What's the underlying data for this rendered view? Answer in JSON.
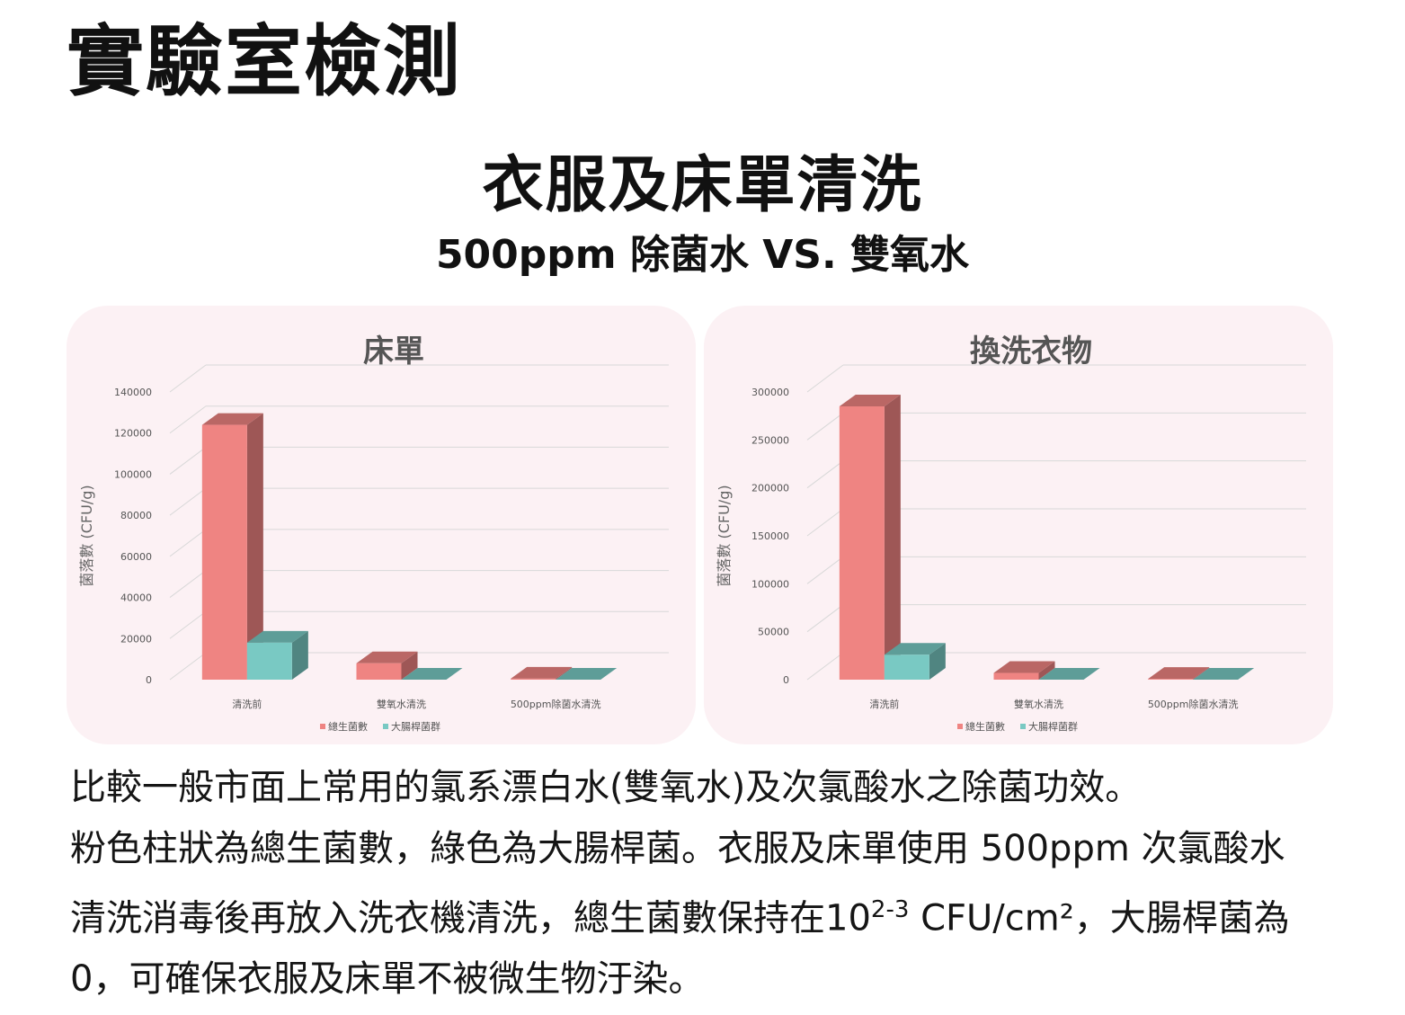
{
  "header": {
    "page_title": "實驗室檢測",
    "main_title": "衣服及床單清洗",
    "subtitle": "500ppm 除菌水 VS. 雙氧水"
  },
  "colors": {
    "total_bacteria": "#ef8482",
    "coliform": "#79c9c3",
    "panel_bg": "#fcf1f4"
  },
  "chart_data": [
    {
      "type": "bar",
      "title": "床單",
      "xlabel": "",
      "ylabel": "菌落數 (CFU/g)",
      "categories": [
        "清洗前",
        "雙氧水清洗",
        "500ppm除菌水清洗"
      ],
      "series": [
        {
          "name": "總生菌數",
          "values": [
            124000,
            8000,
            500
          ]
        },
        {
          "name": "大腸桿菌群",
          "values": [
            18000,
            0,
            0
          ]
        }
      ],
      "ylim": [
        0,
        140000
      ],
      "yticks": [
        "0",
        "20000",
        "40000",
        "60000",
        "80000",
        "100000",
        "120000",
        "140000"
      ],
      "grid": true,
      "legend": "bottom",
      "render": "3d-clustered-column"
    },
    {
      "type": "bar",
      "title": "換洗衣物",
      "xlabel": "",
      "ylabel": "菌落數 (CFU/g)",
      "categories": [
        "清洗前",
        "雙氧水清洗",
        "500ppm除菌水清洗"
      ],
      "series": [
        {
          "name": "總生菌數",
          "values": [
            285000,
            7000,
            800
          ]
        },
        {
          "name": "大腸桿菌群",
          "values": [
            26000,
            0,
            0
          ]
        }
      ],
      "ylim": [
        0,
        300000
      ],
      "yticks": [
        "0",
        "50000",
        "100000",
        "150000",
        "200000",
        "250000",
        "300000"
      ],
      "grid": true,
      "legend": "bottom",
      "render": "3d-clustered-column"
    }
  ],
  "description": {
    "line1": "比較一般市面上常用的氯系漂白水(雙氧水)及次氯酸水之除菌功效。",
    "line2": "粉色柱狀為總生菌數，綠色為大腸桿菌。衣服及床單使用 500ppm 次氯酸水",
    "line3_a": "清洗消毒後再放入洗衣機清洗，總生菌數保持在10",
    "line3_sup": "2-3",
    "line3_b": " CFU/cm²，大腸桿菌為",
    "line4": " 0，可確保衣服及床單不被微生物汙染。"
  }
}
